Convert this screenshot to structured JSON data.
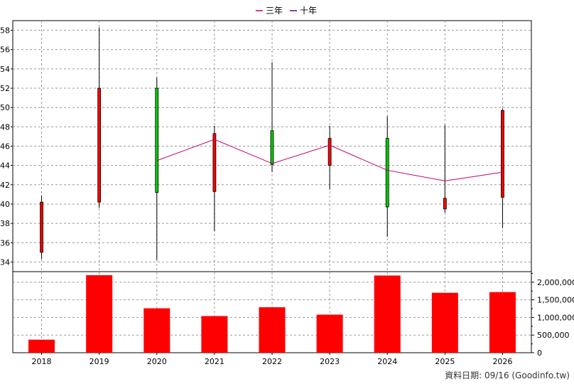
{
  "chart_data": {
    "type": "candlestick",
    "legend": [
      {
        "name": "三年",
        "color": "#c0006a"
      },
      {
        "name": "十年",
        "color": "#5a00a0"
      }
    ],
    "legend_position": "top-center",
    "grid": true,
    "categories": [
      "2018",
      "2019",
      "2020",
      "2021",
      "2022",
      "2023",
      "2024",
      "2025",
      "2026"
    ],
    "candles": [
      {
        "year": "2018",
        "open": 35.0,
        "close": 40.2,
        "high": 40.9,
        "low": 34.3,
        "color": "red"
      },
      {
        "year": "2019",
        "open": 40.2,
        "close": 52.0,
        "high": 58.3,
        "low": 39.6,
        "color": "red"
      },
      {
        "year": "2020",
        "open": 52.0,
        "close": 41.2,
        "high": 53.1,
        "low": 34.2,
        "color": "green"
      },
      {
        "year": "2021",
        "open": 41.3,
        "close": 47.3,
        "high": 48.1,
        "low": 37.2,
        "color": "red"
      },
      {
        "year": "2022",
        "open": 47.6,
        "close": 44.1,
        "high": 54.7,
        "low": 43.3,
        "color": "green"
      },
      {
        "year": "2023",
        "open": 44.0,
        "close": 46.8,
        "high": 48.1,
        "low": 41.5,
        "color": "red"
      },
      {
        "year": "2024",
        "open": 46.8,
        "close": 39.7,
        "high": 49.1,
        "low": 36.6,
        "color": "green"
      },
      {
        "year": "2025",
        "open": 39.5,
        "close": 40.6,
        "high": 48.2,
        "low": 39.1,
        "color": "red"
      },
      {
        "year": "2026",
        "open": 40.7,
        "close": 49.7,
        "high": 49.9,
        "low": 37.5,
        "color": "red"
      }
    ],
    "ma_line": {
      "name": "三年",
      "points": [
        {
          "year": "2020",
          "value": 44.5
        },
        {
          "year": "2021",
          "value": 46.7
        },
        {
          "year": "2022",
          "value": 44.2
        },
        {
          "year": "2023",
          "value": 46.1
        },
        {
          "year": "2024",
          "value": 43.5
        },
        {
          "year": "2025",
          "value": 42.4
        },
        {
          "year": "2026",
          "value": 43.3
        }
      ]
    },
    "price_axis": {
      "min": 33,
      "max": 59,
      "ticks": [
        34,
        36,
        38,
        40,
        42,
        44,
        46,
        48,
        50,
        52,
        54,
        56,
        58
      ]
    },
    "volume": {
      "values": [
        370000,
        2200000,
        1260000,
        1040000,
        1290000,
        1080000,
        2190000,
        1700000,
        1720000
      ],
      "axis": {
        "min": 0,
        "max": 2300000,
        "ticks": [
          0,
          500000,
          1000000,
          1500000,
          2000000
        ],
        "tick_labels": [
          "0",
          "500,000",
          "1,000,000",
          "1,500,000",
          "2,000,000"
        ]
      }
    },
    "colors": {
      "up": "#ff0000",
      "down": "#00cc00",
      "volume": "#ff0000",
      "ma": "#c0006a"
    }
  },
  "footer": "資料日期: 09/16  (Goodinfo.tw)"
}
